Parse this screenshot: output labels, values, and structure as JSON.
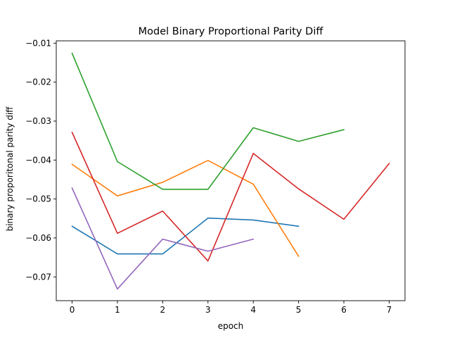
{
  "chart_data": {
    "type": "line",
    "title": "Model Binary Proportional Parity Diff",
    "xlabel": "epoch",
    "ylabel": "binary proporitonal parity diff",
    "xlim": [
      -0.35,
      7.35
    ],
    "ylim": [
      -0.0761,
      -0.0094
    ],
    "xticks": [
      0,
      1,
      2,
      3,
      4,
      5,
      6,
      7
    ],
    "xtick_labels": [
      "0",
      "1",
      "2",
      "3",
      "4",
      "5",
      "6",
      "7"
    ],
    "yticks": [
      -0.07,
      -0.06,
      -0.05,
      -0.04,
      -0.03,
      -0.02,
      -0.01
    ],
    "ytick_labels": [
      "−0.07",
      "−0.06",
      "−0.05",
      "−0.04",
      "−0.03",
      "−0.02",
      "−0.01"
    ],
    "grid": false,
    "legend": "none",
    "series": [
      {
        "color": "#1f77b4",
        "x": [
          0,
          1,
          2,
          3,
          4,
          5
        ],
        "y": [
          -0.057,
          -0.0641,
          -0.0641,
          -0.0549,
          -0.0554,
          -0.057
        ]
      },
      {
        "color": "#ff7f0e",
        "x": [
          0,
          1,
          2,
          3,
          4,
          5
        ],
        "y": [
          -0.0411,
          -0.0492,
          -0.0457,
          -0.0401,
          -0.0462,
          -0.0647
        ]
      },
      {
        "color": "#2ca02c",
        "x": [
          0,
          1,
          2,
          3,
          4,
          5,
          6
        ],
        "y": [
          -0.0126,
          -0.0404,
          -0.0475,
          -0.0475,
          -0.0317,
          -0.0352,
          -0.0322
        ]
      },
      {
        "color": "#d62728",
        "x": [
          0,
          1,
          2,
          3,
          4,
          5,
          6,
          7
        ],
        "y": [
          -0.0329,
          -0.0588,
          -0.0531,
          -0.0659,
          -0.0383,
          -0.0474,
          -0.0552,
          -0.0409
        ]
      },
      {
        "color": "#9467bd",
        "x": [
          0,
          1,
          2,
          3,
          4
        ],
        "y": [
          -0.0472,
          -0.0731,
          -0.0603,
          -0.0634,
          -0.0603
        ]
      }
    ]
  }
}
